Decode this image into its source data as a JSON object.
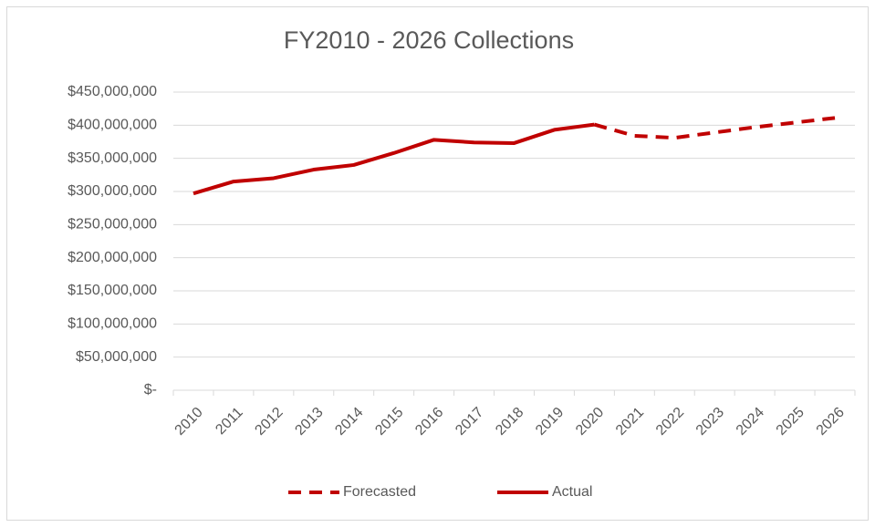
{
  "chart_data": {
    "type": "line",
    "title": "FY2010 - 2026 Collections",
    "categories": [
      "2010",
      "2011",
      "2012",
      "2013",
      "2014",
      "2015",
      "2016",
      "2017",
      "2018",
      "2019",
      "2020",
      "2021",
      "2022",
      "2023",
      "2024",
      "2025",
      "2026"
    ],
    "series": [
      {
        "name": "Forecasted",
        "color": "#c00000",
        "line_style": "dashed",
        "values": [
          null,
          null,
          null,
          null,
          null,
          null,
          null,
          null,
          null,
          null,
          401000000,
          384000000,
          381000000,
          389000000,
          397000000,
          404000000,
          411000000
        ]
      },
      {
        "name": "Actual",
        "color": "#c00000",
        "line_style": "solid",
        "values": [
          297000000,
          315000000,
          320000000,
          333000000,
          340000000,
          358000000,
          378000000,
          374000000,
          373000000,
          393000000,
          401000000,
          null,
          null,
          null,
          null,
          null,
          null
        ]
      }
    ],
    "ylim": [
      0,
      450000000
    ],
    "yticks": [
      {
        "value": 0,
        "label": "$-"
      },
      {
        "value": 50000000,
        "label": "$50,000,000"
      },
      {
        "value": 100000000,
        "label": "$100,000,000"
      },
      {
        "value": 150000000,
        "label": "$150,000,000"
      },
      {
        "value": 200000000,
        "label": "$200,000,000"
      },
      {
        "value": 250000000,
        "label": "$250,000,000"
      },
      {
        "value": 300000000,
        "label": "$300,000,000"
      },
      {
        "value": 350000000,
        "label": "$350,000,000"
      },
      {
        "value": 400000000,
        "label": "$400,000,000"
      },
      {
        "value": 450000000,
        "label": "$450,000,000"
      }
    ],
    "grid": true,
    "legend": "bottom"
  }
}
